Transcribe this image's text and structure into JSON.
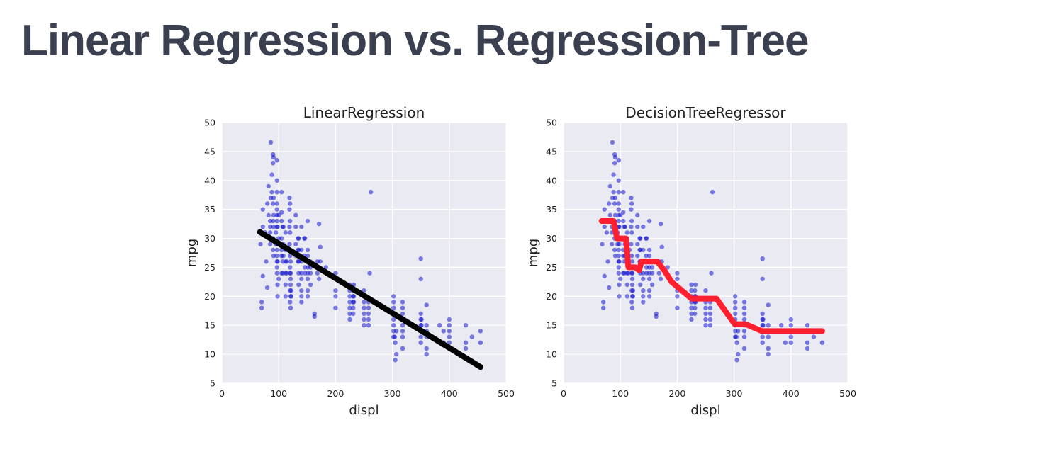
{
  "slide": {
    "title": "Linear Regression vs. Regression-Tree"
  },
  "colors": {
    "title": "#3b4051",
    "plot_background": "#eaeaf2",
    "grid": "#ffffff",
    "points": "#0000cc",
    "linear_fit": "#000000",
    "tree_fit": "#ff1f2e"
  },
  "chart_data": [
    {
      "type": "scatter",
      "title": "LinearRegression",
      "xlabel": "displ",
      "ylabel": "mpg",
      "xlim": [
        0,
        500
      ],
      "ylim": [
        5,
        50
      ],
      "xticks": [
        0,
        100,
        200,
        300,
        400,
        500
      ],
      "yticks": [
        5,
        10,
        15,
        20,
        25,
        30,
        35,
        40,
        45,
        50
      ],
      "grid": true,
      "points": [
        [
          70,
          18
        ],
        [
          70,
          19
        ],
        [
          68,
          29
        ],
        [
          72,
          32
        ],
        [
          72,
          35
        ],
        [
          72,
          23.5
        ],
        [
          76,
          31
        ],
        [
          78,
          26
        ],
        [
          80,
          21.5
        ],
        [
          80,
          36
        ],
        [
          82,
          34
        ],
        [
          82,
          39
        ],
        [
          85,
          33
        ],
        [
          85,
          32
        ],
        [
          85,
          31
        ],
        [
          85,
          29
        ],
        [
          86,
          46.6
        ],
        [
          86,
          37
        ],
        [
          88,
          38
        ],
        [
          88,
          41
        ],
        [
          90,
          44.5
        ],
        [
          90,
          43
        ],
        [
          90,
          36
        ],
        [
          90,
          33
        ],
        [
          90,
          30
        ],
        [
          90,
          28
        ],
        [
          91,
          44
        ],
        [
          91,
          37
        ],
        [
          91,
          34
        ],
        [
          91,
          32
        ],
        [
          91,
          27
        ],
        [
          95,
          31
        ],
        [
          95,
          29
        ],
        [
          97,
          43.5
        ],
        [
          97,
          40
        ],
        [
          97,
          38
        ],
        [
          97,
          36
        ],
        [
          97,
          35
        ],
        [
          97,
          34
        ],
        [
          97,
          33
        ],
        [
          97,
          32
        ],
        [
          97,
          28
        ],
        [
          97,
          27
        ],
        [
          97,
          26
        ],
        [
          97,
          25
        ],
        [
          97,
          24
        ],
        [
          98,
          32
        ],
        [
          98,
          29
        ],
        [
          98,
          26
        ],
        [
          98,
          22
        ],
        [
          98,
          20
        ],
        [
          100,
          34
        ],
        [
          100,
          30
        ],
        [
          100,
          23
        ],
        [
          105,
          38
        ],
        [
          105,
          34.5
        ],
        [
          105,
          33
        ],
        [
          105,
          30
        ],
        [
          105,
          28
        ],
        [
          105,
          27
        ],
        [
          105,
          24
        ],
        [
          107,
          32
        ],
        [
          107,
          26
        ],
        [
          107,
          24
        ],
        [
          108,
          32
        ],
        [
          108,
          29
        ],
        [
          108,
          27
        ],
        [
          112,
          31
        ],
        [
          112,
          28
        ],
        [
          112,
          26
        ],
        [
          112,
          24
        ],
        [
          112,
          22
        ],
        [
          112,
          20
        ],
        [
          114,
          26
        ],
        [
          114,
          24
        ],
        [
          116,
          28
        ],
        [
          119,
          37
        ],
        [
          119,
          35
        ],
        [
          119,
          32
        ],
        [
          119,
          29
        ],
        [
          120,
          36
        ],
        [
          120,
          33
        ],
        [
          120,
          31
        ],
        [
          120,
          27
        ],
        [
          120,
          25
        ],
        [
          120,
          24
        ],
        [
          120,
          21
        ],
        [
          120,
          19
        ],
        [
          121,
          26
        ],
        [
          121,
          24
        ],
        [
          121,
          23
        ],
        [
          121,
          22
        ],
        [
          121,
          20
        ],
        [
          121,
          18
        ],
        [
          122,
          21
        ],
        [
          122,
          20
        ],
        [
          130,
          34
        ],
        [
          130,
          32
        ],
        [
          130,
          29
        ],
        [
          130,
          27
        ],
        [
          134,
          30
        ],
        [
          134,
          28
        ],
        [
          134,
          26
        ],
        [
          135,
          30
        ],
        [
          135,
          28
        ],
        [
          135,
          26
        ],
        [
          135,
          24
        ],
        [
          135,
          22
        ],
        [
          140,
          32
        ],
        [
          140,
          28
        ],
        [
          140,
          26
        ],
        [
          140,
          24
        ],
        [
          140,
          23
        ],
        [
          140,
          21
        ],
        [
          140,
          20
        ],
        [
          140,
          19
        ],
        [
          145,
          30
        ],
        [
          145,
          27
        ],
        [
          146,
          30
        ],
        [
          146,
          25
        ],
        [
          146,
          24
        ],
        [
          151,
          33
        ],
        [
          151,
          28
        ],
        [
          151,
          27
        ],
        [
          151,
          26
        ],
        [
          151,
          25
        ],
        [
          151,
          24
        ],
        [
          151,
          23
        ],
        [
          151,
          21
        ],
        [
          151,
          20
        ],
        [
          156,
          26
        ],
        [
          156,
          25
        ],
        [
          156,
          24
        ],
        [
          156,
          22
        ],
        [
          163,
          17
        ],
        [
          163,
          16.5
        ],
        [
          168,
          26
        ],
        [
          168,
          24
        ],
        [
          171,
          32.5
        ],
        [
          171,
          23
        ],
        [
          173,
          28.5
        ],
        [
          173,
          26
        ],
        [
          183,
          25
        ],
        [
          200,
          24
        ],
        [
          200,
          23
        ],
        [
          200,
          21
        ],
        [
          200,
          20
        ],
        [
          200,
          18
        ],
        [
          225,
          22
        ],
        [
          225,
          21
        ],
        [
          225,
          20
        ],
        [
          225,
          19
        ],
        [
          225,
          18
        ],
        [
          225,
          17
        ],
        [
          225,
          16
        ],
        [
          231,
          21
        ],
        [
          231,
          20
        ],
        [
          231,
          19
        ],
        [
          231,
          18
        ],
        [
          231,
          17
        ],
        [
          232,
          22
        ],
        [
          232,
          20
        ],
        [
          232,
          19
        ],
        [
          250,
          21
        ],
        [
          250,
          19
        ],
        [
          250,
          18
        ],
        [
          250,
          17
        ],
        [
          250,
          16
        ],
        [
          250,
          15
        ],
        [
          258,
          19
        ],
        [
          258,
          18
        ],
        [
          258,
          17
        ],
        [
          258,
          16
        ],
        [
          258,
          15
        ],
        [
          262,
          38
        ],
        [
          260,
          24
        ],
        [
          302,
          20
        ],
        [
          302,
          19
        ],
        [
          302,
          18
        ],
        [
          302,
          17
        ],
        [
          302,
          16
        ],
        [
          302,
          15
        ],
        [
          302,
          14
        ],
        [
          302,
          13
        ],
        [
          304,
          13
        ],
        [
          305,
          9
        ],
        [
          305,
          12
        ],
        [
          307,
          10
        ],
        [
          307,
          14
        ],
        [
          318,
          19
        ],
        [
          318,
          18
        ],
        [
          318,
          17
        ],
        [
          318,
          16
        ],
        [
          318,
          15
        ],
        [
          318,
          14
        ],
        [
          318,
          13
        ],
        [
          318,
          11
        ],
        [
          350,
          26.5
        ],
        [
          350,
          23
        ],
        [
          350,
          17
        ],
        [
          350,
          16
        ],
        [
          350,
          15
        ],
        [
          350,
          14
        ],
        [
          350,
          13
        ],
        [
          350,
          12
        ],
        [
          351,
          15
        ],
        [
          351,
          16
        ],
        [
          360,
          18.5
        ],
        [
          360,
          15
        ],
        [
          360,
          14
        ],
        [
          360,
          13
        ],
        [
          360,
          11
        ],
        [
          360,
          10
        ],
        [
          383,
          15
        ],
        [
          390,
          14
        ],
        [
          390,
          12
        ],
        [
          400,
          16
        ],
        [
          400,
          15
        ],
        [
          400,
          14
        ],
        [
          400,
          13
        ],
        [
          400,
          12
        ],
        [
          429,
          15
        ],
        [
          429,
          12
        ],
        [
          429,
          11
        ],
        [
          440,
          13
        ],
        [
          455,
          14
        ],
        [
          455,
          12
        ]
      ],
      "fit": {
        "name": "linear",
        "x": [
          67,
          455
        ],
        "y": [
          31.1,
          7.8
        ]
      }
    },
    {
      "type": "scatter",
      "title": "DecisionTreeRegressor",
      "xlabel": "displ",
      "ylabel": "mpg",
      "xlim": [
        0,
        500
      ],
      "ylim": [
        5,
        50
      ],
      "xticks": [
        0,
        100,
        200,
        300,
        400,
        500
      ],
      "yticks": [
        5,
        10,
        15,
        20,
        25,
        30,
        35,
        40,
        45,
        50
      ],
      "grid": true,
      "points_same_as": 0,
      "fit": {
        "name": "tree",
        "x": [
          67,
          88,
          94,
          101,
          110,
          114,
          126,
          133,
          137,
          165,
          177,
          190,
          225,
          254,
          269,
          301,
          320,
          349,
          455
        ],
        "y": [
          33,
          33,
          30,
          30,
          30,
          25,
          25,
          24.5,
          26,
          26,
          24.5,
          22.5,
          19.6,
          19.6,
          19.6,
          15.2,
          15.2,
          14,
          14
        ]
      }
    }
  ]
}
